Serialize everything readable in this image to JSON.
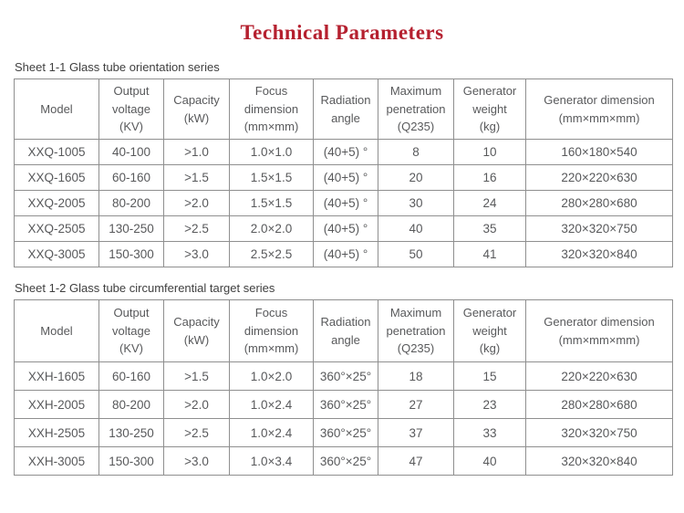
{
  "page": {
    "title": "Technical Parameters",
    "title_color": "#b5202f",
    "border_color": "#8f8f8f",
    "text_color": "#58595b"
  },
  "tables": [
    {
      "caption": "Sheet 1-1 Glass tube orientation series",
      "headers": [
        "Model",
        "Output\nvoltage\n(KV)",
        "Capacity\n(kW)",
        "Focus\ndimension\n(mm×mm)",
        "Radiation\nangle",
        "Maximum\npenetration\n(Q235)",
        "Generator\nweight\n(kg)",
        "Generator dimension\n(mm×mm×mm)"
      ],
      "rows": [
        [
          "XXQ-1005",
          "40-100",
          ">1.0",
          "1.0×1.0",
          "(40+5) °",
          "8",
          "10",
          "160×180×540"
        ],
        [
          "XXQ-1605",
          "60-160",
          ">1.5",
          "1.5×1.5",
          "(40+5) °",
          "20",
          "16",
          "220×220×630"
        ],
        [
          "XXQ-2005",
          "80-200",
          ">2.0",
          "1.5×1.5",
          "(40+5) °",
          "30",
          "24",
          "280×280×680"
        ],
        [
          "XXQ-2505",
          "130-250",
          ">2.5",
          "2.0×2.0",
          "(40+5) °",
          "40",
          "35",
          "320×320×750"
        ],
        [
          "XXQ-3005",
          "150-300",
          ">3.0",
          "2.5×2.5",
          "(40+5) °",
          "50",
          "41",
          "320×320×840"
        ]
      ]
    },
    {
      "caption": "Sheet 1-2 Glass tube circumferential target series",
      "headers": [
        "Model",
        "Output\nvoltage\n(KV)",
        "Capacity\n(kW)",
        "Focus\ndimension\n(mm×mm)",
        "Radiation\nangle",
        "Maximum\npenetration\n(Q235)",
        "Generator\nweight\n(kg)",
        "Generator dimension\n(mm×mm×mm)"
      ],
      "rows": [
        [
          "XXH-1605",
          "60-160",
          ">1.5",
          "1.0×2.0",
          "360°×25°",
          "18",
          "15",
          "220×220×630"
        ],
        [
          "XXH-2005",
          "80-200",
          ">2.0",
          "1.0×2.4",
          "360°×25°",
          "27",
          "23",
          "280×280×680"
        ],
        [
          "XXH-2505",
          "130-250",
          ">2.5",
          "1.0×2.4",
          "360°×25°",
          "37",
          "33",
          "320×320×750"
        ],
        [
          "XXH-3005",
          "150-300",
          ">3.0",
          "1.0×3.4",
          "360°×25°",
          "47",
          "40",
          "320×320×840"
        ]
      ]
    }
  ]
}
